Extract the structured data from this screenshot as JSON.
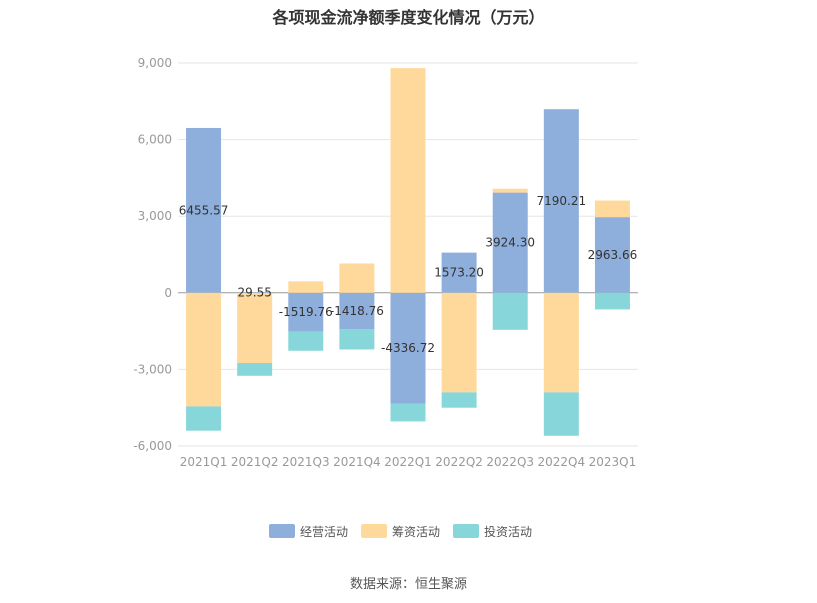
{
  "chart_data": {
    "type": "bar",
    "stacked": true,
    "title": "各项现金流净额季度变化情况（万元）",
    "categories": [
      "2021Q1",
      "2021Q2",
      "2021Q3",
      "2021Q4",
      "2022Q1",
      "2022Q2",
      "2022Q3",
      "2022Q4",
      "2023Q1"
    ],
    "series": [
      {
        "name": "经营活动",
        "color": "#8eaedb",
        "values": [
          6455.57,
          29.55,
          -1519.76,
          -1418.76,
          -4336.72,
          1573.2,
          3924.3,
          7190.21,
          2963.66
        ]
      },
      {
        "name": "筹资活动",
        "color": "#ffd99b",
        "values": [
          -4450,
          -2750,
          450,
          1150,
          8800,
          -3900,
          150,
          -3900,
          650
        ]
      },
      {
        "name": "投资活动",
        "color": "#87d6d9",
        "values": [
          -950,
          -500,
          -750,
          -800,
          -700,
          -600,
          -1450,
          -1700,
          -650
        ]
      }
    ],
    "data_labels": [
      "6455.57",
      "29.55",
      "-1519.76",
      "-1418.76",
      "-4336.72",
      "1573.20",
      "3924.30",
      "7190.21",
      "2963.66"
    ],
    "ylim": [
      -6000,
      9000
    ],
    "yticks": [
      9000,
      6000,
      3000,
      0,
      -3000,
      -6000
    ],
    "ytick_labels": [
      "9,000",
      "6,000",
      "3,000",
      "0",
      "-3,000",
      "-6,000"
    ],
    "grid": true,
    "legend_position": "bottom-center"
  },
  "source": "数据来源：恒生聚源"
}
